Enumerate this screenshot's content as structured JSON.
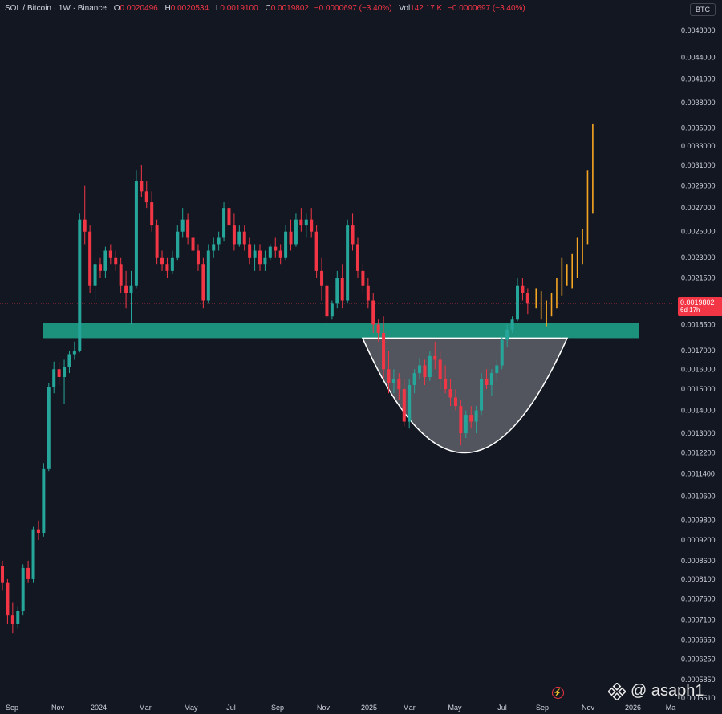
{
  "header": {
    "symbol": "SOL / Bitcoin · 1W · Binance",
    "o_label": "O",
    "o_value": "0.0020496",
    "h_label": "H",
    "h_value": "0.0020534",
    "l_label": "L",
    "l_value": "0.0019100",
    "c_label": "C",
    "c_value": "0.0019802",
    "change": "−0.0000697 (−3.40%)",
    "vol_label": "Vol",
    "vol_value": "142.17 K",
    "vol_change": "−0.0000697 (−3.40%)"
  },
  "currency_badge": "BTC",
  "last_price": {
    "value": "0.0019802",
    "countdown": "6d 17h"
  },
  "watermark": "@ asaph1",
  "colors": {
    "up": "#26a69a",
    "down": "#f23645",
    "projection": "#f5a623",
    "zone": "#1e9e86",
    "background": "#131722"
  },
  "chart_data": {
    "type": "candlestick",
    "symbol": "SOL / Bitcoin",
    "interval": "1W",
    "exchange": "Binance",
    "y_scale": "log",
    "y_ticks": [
      "0.0048000",
      "0.0044000",
      "0.0041000",
      "0.0038000",
      "0.0035000",
      "0.0033000",
      "0.0031000",
      "0.0029000",
      "0.0027000",
      "0.0025000",
      "0.0023000",
      "0.0021500",
      "0.0018500",
      "0.0017000",
      "0.0016000",
      "0.0015000",
      "0.0014000",
      "0.0013000",
      "0.0012200",
      "0.0011400",
      "0.0010600",
      "0.0009800",
      "0.0009200",
      "0.0008600",
      "0.0008100",
      "0.0007600",
      "0.0007100",
      "0.0006650",
      "0.0006250",
      "0.0005850",
      "0.0005510"
    ],
    "x_ticks": [
      "Sep",
      "Nov",
      "2024",
      "Mar",
      "May",
      "Jul",
      "Sep",
      "Nov",
      "2025",
      "Mar",
      "May",
      "Jul",
      "Sep",
      "Nov",
      "2026",
      "Ma"
    ],
    "support_zone": [
      0.00177,
      0.00186
    ],
    "cup_bottom": 0.00122,
    "candles": [
      {
        "o": 0.000845,
        "h": 0.00086,
        "l": 0.00078,
        "c": 0.0008
      },
      {
        "o": 0.0008,
        "h": 0.00081,
        "l": 0.0007,
        "c": 0.00072
      },
      {
        "o": 0.00072,
        "h": 0.00075,
        "l": 0.00068,
        "c": 0.0007
      },
      {
        "o": 0.0007,
        "h": 0.00074,
        "l": 0.00069,
        "c": 0.00073
      },
      {
        "o": 0.00073,
        "h": 0.00085,
        "l": 0.00072,
        "c": 0.00084
      },
      {
        "o": 0.00084,
        "h": 0.00086,
        "l": 0.0008,
        "c": 0.00081
      },
      {
        "o": 0.00081,
        "h": 0.00096,
        "l": 0.0008,
        "c": 0.00095
      },
      {
        "o": 0.00095,
        "h": 0.00098,
        "l": 0.00092,
        "c": 0.00094
      },
      {
        "o": 0.00094,
        "h": 0.00118,
        "l": 0.00093,
        "c": 0.00116
      },
      {
        "o": 0.00116,
        "h": 0.00153,
        "l": 0.00115,
        "c": 0.00151
      },
      {
        "o": 0.00151,
        "h": 0.00164,
        "l": 0.00148,
        "c": 0.0016
      },
      {
        "o": 0.0016,
        "h": 0.00164,
        "l": 0.00152,
        "c": 0.00156
      },
      {
        "o": 0.00156,
        "h": 0.00165,
        "l": 0.00143,
        "c": 0.00161
      },
      {
        "o": 0.00161,
        "h": 0.0017,
        "l": 0.00158,
        "c": 0.00168
      },
      {
        "o": 0.00168,
        "h": 0.00175,
        "l": 0.00165,
        "c": 0.0017
      },
      {
        "o": 0.0017,
        "h": 0.00265,
        "l": 0.00169,
        "c": 0.0026
      },
      {
        "o": 0.0026,
        "h": 0.0029,
        "l": 0.0024,
        "c": 0.0025
      },
      {
        "o": 0.0025,
        "h": 0.00255,
        "l": 0.00205,
        "c": 0.0021
      },
      {
        "o": 0.0021,
        "h": 0.0023,
        "l": 0.002,
        "c": 0.00225
      },
      {
        "o": 0.00225,
        "h": 0.0023,
        "l": 0.00215,
        "c": 0.0022
      },
      {
        "o": 0.0022,
        "h": 0.00238,
        "l": 0.00215,
        "c": 0.00235
      },
      {
        "o": 0.00235,
        "h": 0.0024,
        "l": 0.00225,
        "c": 0.0023
      },
      {
        "o": 0.0023,
        "h": 0.00235,
        "l": 0.0022,
        "c": 0.00225
      },
      {
        "o": 0.00225,
        "h": 0.0023,
        "l": 0.00205,
        "c": 0.0021
      },
      {
        "o": 0.0021,
        "h": 0.0022,
        "l": 0.00195,
        "c": 0.00205
      },
      {
        "o": 0.00205,
        "h": 0.0022,
        "l": 0.00185,
        "c": 0.0021
      },
      {
        "o": 0.0021,
        "h": 0.00305,
        "l": 0.00208,
        "c": 0.00295
      },
      {
        "o": 0.00295,
        "h": 0.0031,
        "l": 0.0028,
        "c": 0.00285
      },
      {
        "o": 0.00285,
        "h": 0.00295,
        "l": 0.0027,
        "c": 0.00275
      },
      {
        "o": 0.00275,
        "h": 0.00285,
        "l": 0.0025,
        "c": 0.00255
      },
      {
        "o": 0.00255,
        "h": 0.0026,
        "l": 0.00225,
        "c": 0.0023
      },
      {
        "o": 0.0023,
        "h": 0.00235,
        "l": 0.0022,
        "c": 0.00225
      },
      {
        "o": 0.00225,
        "h": 0.0023,
        "l": 0.00215,
        "c": 0.0022
      },
      {
        "o": 0.0022,
        "h": 0.00235,
        "l": 0.00218,
        "c": 0.0023
      },
      {
        "o": 0.0023,
        "h": 0.00255,
        "l": 0.00228,
        "c": 0.0025
      },
      {
        "o": 0.0025,
        "h": 0.0027,
        "l": 0.00245,
        "c": 0.0026
      },
      {
        "o": 0.0026,
        "h": 0.00265,
        "l": 0.0024,
        "c": 0.00245
      },
      {
        "o": 0.00245,
        "h": 0.0025,
        "l": 0.0023,
        "c": 0.00235
      },
      {
        "o": 0.00235,
        "h": 0.0024,
        "l": 0.0022,
        "c": 0.00225
      },
      {
        "o": 0.00225,
        "h": 0.0023,
        "l": 0.00195,
        "c": 0.002
      },
      {
        "o": 0.002,
        "h": 0.0024,
        "l": 0.00198,
        "c": 0.00235
      },
      {
        "o": 0.00235,
        "h": 0.00245,
        "l": 0.0023,
        "c": 0.0024
      },
      {
        "o": 0.0024,
        "h": 0.0025,
        "l": 0.00235,
        "c": 0.00245
      },
      {
        "o": 0.00245,
        "h": 0.00275,
        "l": 0.00242,
        "c": 0.0027
      },
      {
        "o": 0.0027,
        "h": 0.0028,
        "l": 0.0025,
        "c": 0.00255
      },
      {
        "o": 0.00255,
        "h": 0.00265,
        "l": 0.00235,
        "c": 0.0024
      },
      {
        "o": 0.0024,
        "h": 0.00255,
        "l": 0.00238,
        "c": 0.0025
      },
      {
        "o": 0.0025,
        "h": 0.00255,
        "l": 0.00235,
        "c": 0.0024
      },
      {
        "o": 0.0024,
        "h": 0.00245,
        "l": 0.00225,
        "c": 0.0023
      },
      {
        "o": 0.0023,
        "h": 0.0024,
        "l": 0.0022,
        "c": 0.00235
      },
      {
        "o": 0.00235,
        "h": 0.0024,
        "l": 0.0022,
        "c": 0.00225
      },
      {
        "o": 0.00225,
        "h": 0.00235,
        "l": 0.0022,
        "c": 0.0023
      },
      {
        "o": 0.0023,
        "h": 0.0024,
        "l": 0.00228,
        "c": 0.00238
      },
      {
        "o": 0.00238,
        "h": 0.00245,
        "l": 0.0023,
        "c": 0.00235
      },
      {
        "o": 0.00235,
        "h": 0.0024,
        "l": 0.00225,
        "c": 0.0023
      },
      {
        "o": 0.0023,
        "h": 0.00255,
        "l": 0.00228,
        "c": 0.0025
      },
      {
        "o": 0.0025,
        "h": 0.0026,
        "l": 0.00235,
        "c": 0.0024
      },
      {
        "o": 0.0024,
        "h": 0.00265,
        "l": 0.00238,
        "c": 0.0026
      },
      {
        "o": 0.0026,
        "h": 0.0027,
        "l": 0.0025,
        "c": 0.00255
      },
      {
        "o": 0.00255,
        "h": 0.00265,
        "l": 0.00245,
        "c": 0.0026
      },
      {
        "o": 0.0026,
        "h": 0.0027,
        "l": 0.00245,
        "c": 0.0025
      },
      {
        "o": 0.0025,
        "h": 0.00255,
        "l": 0.00215,
        "c": 0.0022
      },
      {
        "o": 0.0022,
        "h": 0.0023,
        "l": 0.002,
        "c": 0.0021
      },
      {
        "o": 0.0021,
        "h": 0.00215,
        "l": 0.00185,
        "c": 0.0019
      },
      {
        "o": 0.0019,
        "h": 0.002,
        "l": 0.00188,
        "c": 0.00198
      },
      {
        "o": 0.00198,
        "h": 0.0022,
        "l": 0.00195,
        "c": 0.00215
      },
      {
        "o": 0.00215,
        "h": 0.00225,
        "l": 0.00195,
        "c": 0.002
      },
      {
        "o": 0.002,
        "h": 0.0026,
        "l": 0.00198,
        "c": 0.00255
      },
      {
        "o": 0.00255,
        "h": 0.00265,
        "l": 0.00235,
        "c": 0.0024
      },
      {
        "o": 0.0024,
        "h": 0.00245,
        "l": 0.00215,
        "c": 0.0022
      },
      {
        "o": 0.0022,
        "h": 0.00225,
        "l": 0.00205,
        "c": 0.0021
      },
      {
        "o": 0.0021,
        "h": 0.00215,
        "l": 0.00195,
        "c": 0.002
      },
      {
        "o": 0.002,
        "h": 0.00205,
        "l": 0.0018,
        "c": 0.00185
      },
      {
        "o": 0.00185,
        "h": 0.00188,
        "l": 0.00175,
        "c": 0.0018
      },
      {
        "o": 0.0018,
        "h": 0.0019,
        "l": 0.00155,
        "c": 0.0016
      },
      {
        "o": 0.0016,
        "h": 0.0017,
        "l": 0.00148,
        "c": 0.00153
      },
      {
        "o": 0.00153,
        "h": 0.0016,
        "l": 0.00148,
        "c": 0.00155
      },
      {
        "o": 0.00155,
        "h": 0.00158,
        "l": 0.00145,
        "c": 0.0015
      },
      {
        "o": 0.0015,
        "h": 0.00155,
        "l": 0.00133,
        "c": 0.00135
      },
      {
        "o": 0.00135,
        "h": 0.00155,
        "l": 0.00132,
        "c": 0.00152
      },
      {
        "o": 0.00152,
        "h": 0.0016,
        "l": 0.00148,
        "c": 0.00158
      },
      {
        "o": 0.00158,
        "h": 0.00166,
        "l": 0.00155,
        "c": 0.00162
      },
      {
        "o": 0.00162,
        "h": 0.00165,
        "l": 0.00152,
        "c": 0.00156
      },
      {
        "o": 0.00156,
        "h": 0.0017,
        "l": 0.00154,
        "c": 0.00167
      },
      {
        "o": 0.00167,
        "h": 0.00175,
        "l": 0.0016,
        "c": 0.00165
      },
      {
        "o": 0.00165,
        "h": 0.0017,
        "l": 0.0015,
        "c": 0.00155
      },
      {
        "o": 0.00155,
        "h": 0.00162,
        "l": 0.00148,
        "c": 0.0015
      },
      {
        "o": 0.0015,
        "h": 0.00155,
        "l": 0.00142,
        "c": 0.00146
      },
      {
        "o": 0.00146,
        "h": 0.0015,
        "l": 0.0014,
        "c": 0.00142
      },
      {
        "o": 0.00142,
        "h": 0.00145,
        "l": 0.00125,
        "c": 0.0013
      },
      {
        "o": 0.0013,
        "h": 0.0014,
        "l": 0.00128,
        "c": 0.00138
      },
      {
        "o": 0.00138,
        "h": 0.00142,
        "l": 0.00132,
        "c": 0.00135
      },
      {
        "o": 0.00135,
        "h": 0.00142,
        "l": 0.0013,
        "c": 0.0014
      },
      {
        "o": 0.0014,
        "h": 0.00158,
        "l": 0.00138,
        "c": 0.00155
      },
      {
        "o": 0.00155,
        "h": 0.0016,
        "l": 0.0015,
        "c": 0.00152
      },
      {
        "o": 0.00152,
        "h": 0.0016,
        "l": 0.00147,
        "c": 0.00158
      },
      {
        "o": 0.00158,
        "h": 0.00165,
        "l": 0.00154,
        "c": 0.00162
      },
      {
        "o": 0.00162,
        "h": 0.00178,
        "l": 0.0016,
        "c": 0.00176
      },
      {
        "o": 0.00176,
        "h": 0.00185,
        "l": 0.00172,
        "c": 0.00182
      },
      {
        "o": 0.00182,
        "h": 0.0019,
        "l": 0.0018,
        "c": 0.00188
      },
      {
        "o": 0.00188,
        "h": 0.00215,
        "l": 0.00187,
        "c": 0.0021
      },
      {
        "o": 0.0021,
        "h": 0.00215,
        "l": 0.002,
        "c": 0.00205
      },
      {
        "o": 0.00205,
        "h": 0.00208,
        "l": 0.00191,
        "c": 0.00198
      }
    ],
    "projection": [
      {
        "l": 0.00195,
        "h": 0.00208
      },
      {
        "l": 0.00188,
        "h": 0.00206
      },
      {
        "l": 0.00184,
        "h": 0.002
      },
      {
        "l": 0.0019,
        "h": 0.00205
      },
      {
        "l": 0.00195,
        "h": 0.00215
      },
      {
        "l": 0.00203,
        "h": 0.0023
      },
      {
        "l": 0.0021,
        "h": 0.00225
      },
      {
        "l": 0.00208,
        "h": 0.00233
      },
      {
        "l": 0.00215,
        "h": 0.00245
      },
      {
        "l": 0.00225,
        "h": 0.00252
      },
      {
        "l": 0.0024,
        "h": 0.00305
      },
      {
        "l": 0.00265,
        "h": 0.00355
      }
    ]
  }
}
